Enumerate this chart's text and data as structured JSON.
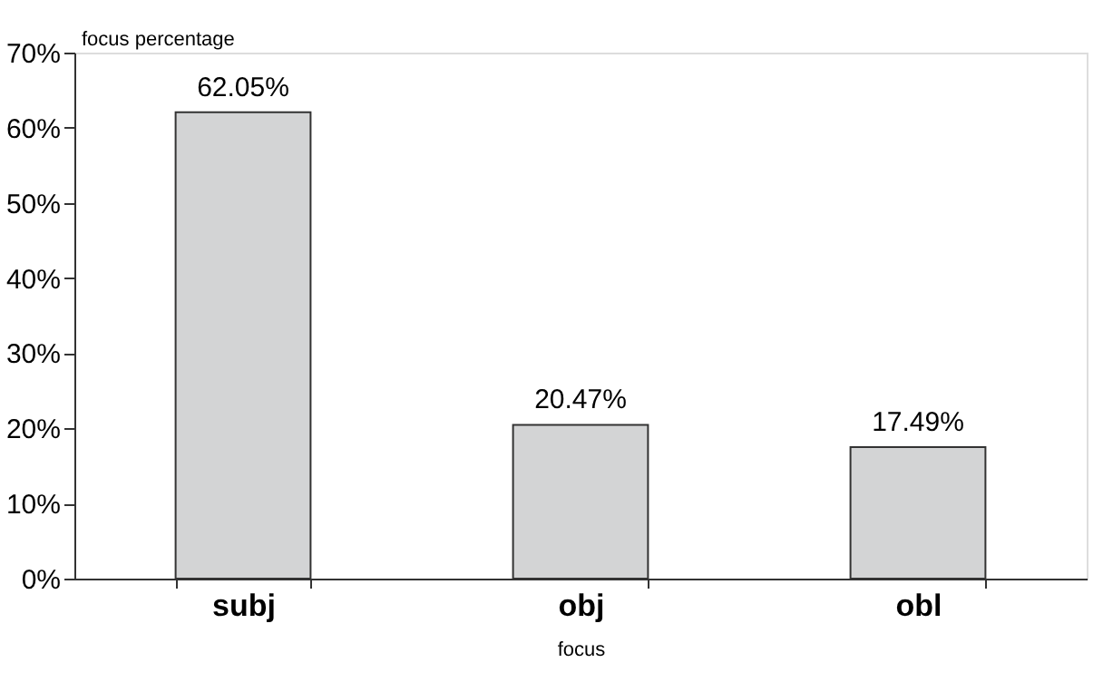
{
  "chart_data": {
    "type": "bar",
    "xlabel": "focus",
    "ylabel": "focus percentage",
    "categories": [
      "subj",
      "obj",
      "obl"
    ],
    "values": [
      62.05,
      20.47,
      17.49
    ],
    "value_labels": [
      "62.05%",
      "20.47%",
      "17.49%"
    ],
    "color": "#d3d4d5",
    "ylim": [
      0,
      70
    ],
    "yticks": [
      {
        "value": 0,
        "label": "0%"
      },
      {
        "value": 10,
        "label": "10%"
      },
      {
        "value": 20,
        "label": "20%"
      },
      {
        "value": 30,
        "label": "30%"
      },
      {
        "value": 40,
        "label": "40%"
      },
      {
        "value": 50,
        "label": "50%"
      },
      {
        "value": 60,
        "label": "60%"
      },
      {
        "value": 70,
        "label": "70%"
      }
    ],
    "grid": false
  }
}
